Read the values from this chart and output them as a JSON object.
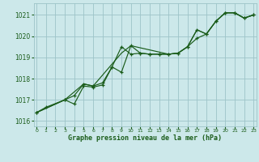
{
  "title": "Graphe pression niveau de la mer (hPa)",
  "bg_color": "#cce8ea",
  "grid_color": "#9dc4c8",
  "line_color": "#1a5c1a",
  "xlim": [
    -0.3,
    23.3
  ],
  "ylim": [
    1015.75,
    1021.55
  ],
  "yticks": [
    1016,
    1017,
    1018,
    1019,
    1020,
    1021
  ],
  "xticks": [
    0,
    1,
    2,
    3,
    4,
    5,
    6,
    7,
    8,
    9,
    10,
    11,
    12,
    13,
    14,
    15,
    16,
    17,
    18,
    19,
    20,
    21,
    22,
    23
  ],
  "line1_x": [
    0,
    1,
    3,
    4,
    5,
    6,
    7,
    8,
    9,
    10,
    11,
    12,
    13,
    14,
    15,
    16,
    17,
    18,
    19,
    20,
    21,
    22,
    23
  ],
  "line1_y": [
    1016.4,
    1016.65,
    1017.0,
    1016.8,
    1017.65,
    1017.6,
    1017.7,
    1018.55,
    1019.5,
    1019.15,
    1019.2,
    1019.15,
    1019.15,
    1019.15,
    1019.2,
    1019.5,
    1019.9,
    1020.1,
    1020.7,
    1021.1,
    1021.1,
    1020.85,
    1021.0
  ],
  "line2_x": [
    0,
    3,
    4,
    5,
    6,
    7,
    8,
    9,
    10,
    11,
    12,
    13,
    14,
    15,
    16,
    17,
    18,
    19,
    20,
    21,
    22,
    23
  ],
  "line2_y": [
    1016.4,
    1017.0,
    1017.2,
    1017.75,
    1017.65,
    1017.8,
    1018.55,
    1018.3,
    1019.55,
    1019.2,
    1019.15,
    1019.15,
    1019.15,
    1019.2,
    1019.5,
    1020.3,
    1020.1,
    1020.7,
    1021.1,
    1021.1,
    1020.85,
    1021.0
  ],
  "line3_x": [
    0,
    3,
    5,
    6,
    9,
    10,
    14,
    15,
    16,
    17,
    18,
    19,
    20,
    21,
    22,
    23
  ],
  "line3_y": [
    1016.4,
    1017.0,
    1017.75,
    1017.65,
    1019.2,
    1019.55,
    1019.15,
    1019.2,
    1019.5,
    1020.3,
    1020.1,
    1020.7,
    1021.1,
    1021.1,
    1020.85,
    1021.0
  ]
}
